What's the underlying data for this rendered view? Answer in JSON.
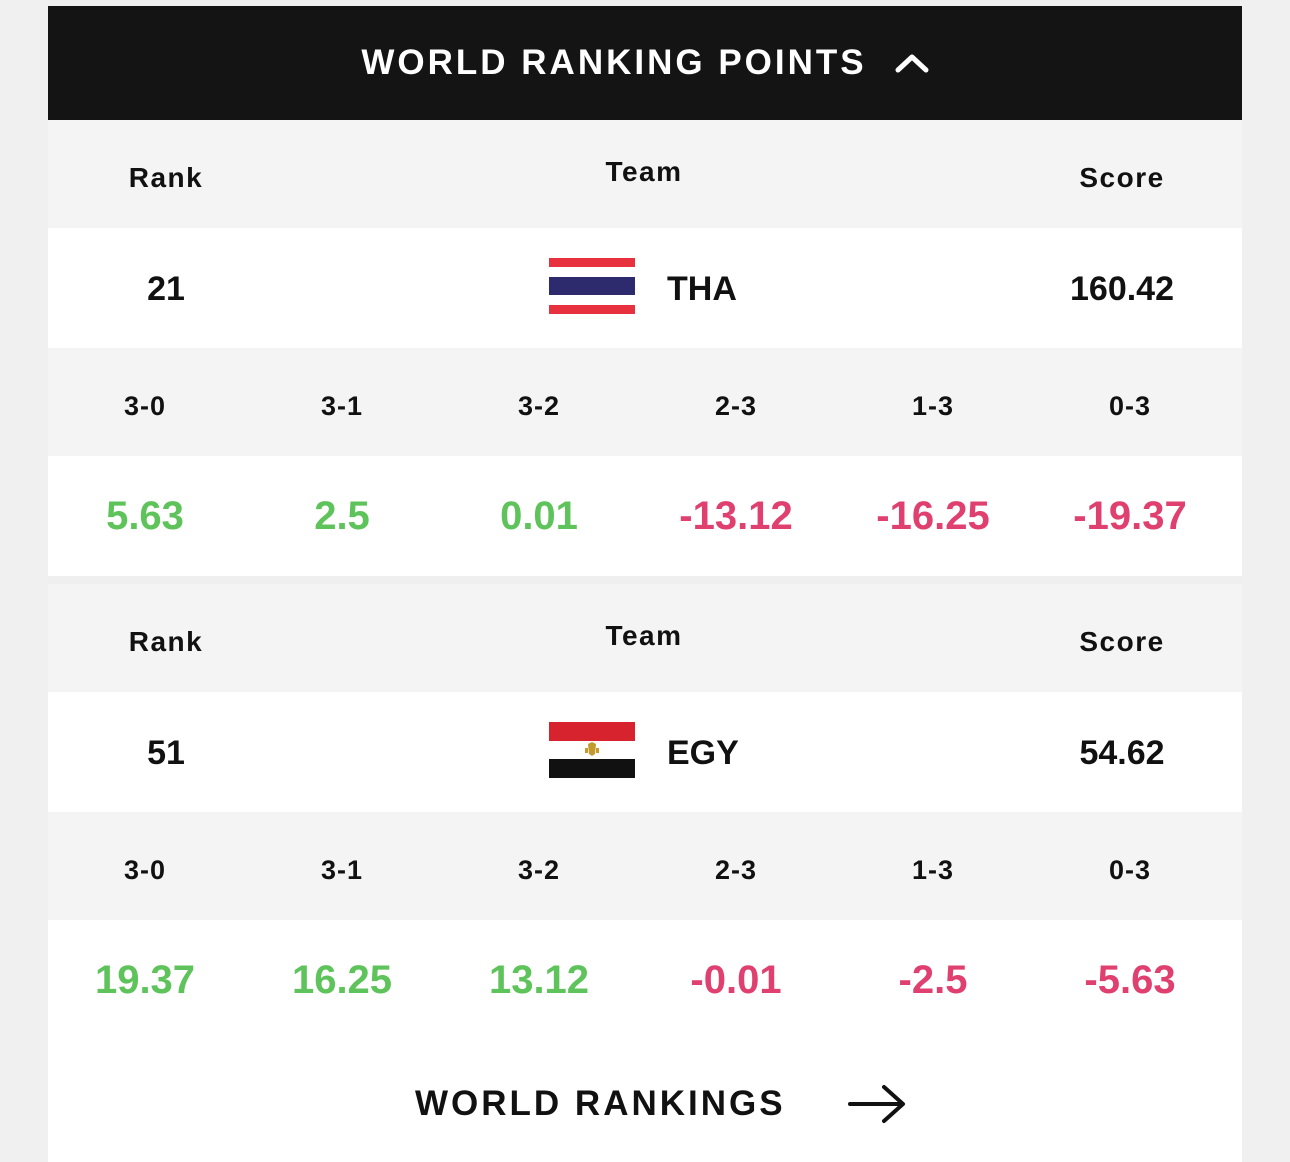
{
  "header": {
    "title": "WORLD RANKING POINTS",
    "toggle_icon": "chevron-up-icon"
  },
  "columns": {
    "rank": "Rank",
    "team": "Team",
    "score": "Score"
  },
  "teams": [
    {
      "rank": "21",
      "code": "THA",
      "score": "160.42",
      "flag_icon": "thailand-flag-icon",
      "results": [
        {
          "label": "3-0",
          "value": "5.63",
          "sign": "positive"
        },
        {
          "label": "3-1",
          "value": "2.5",
          "sign": "positive"
        },
        {
          "label": "3-2",
          "value": "0.01",
          "sign": "positive"
        },
        {
          "label": "2-3",
          "value": "-13.12",
          "sign": "negative"
        },
        {
          "label": "1-3",
          "value": "-16.25",
          "sign": "negative"
        },
        {
          "label": "0-3",
          "value": "-19.37",
          "sign": "negative"
        }
      ]
    },
    {
      "rank": "51",
      "code": "EGY",
      "score": "54.62",
      "flag_icon": "egypt-flag-icon",
      "results": [
        {
          "label": "3-0",
          "value": "19.37",
          "sign": "positive"
        },
        {
          "label": "3-1",
          "value": "16.25",
          "sign": "positive"
        },
        {
          "label": "3-2",
          "value": "13.12",
          "sign": "positive"
        },
        {
          "label": "2-3",
          "value": "-0.01",
          "sign": "negative"
        },
        {
          "label": "1-3",
          "value": "-2.5",
          "sign": "negative"
        },
        {
          "label": "0-3",
          "value": "-5.63",
          "sign": "negative"
        }
      ]
    }
  ],
  "colors": {
    "positive": "#5ec35a",
    "negative": "#e0406f",
    "header_bg": "#141414"
  },
  "footer": {
    "link_label": "WORLD RANKINGS",
    "link_icon": "arrow-right-icon"
  }
}
